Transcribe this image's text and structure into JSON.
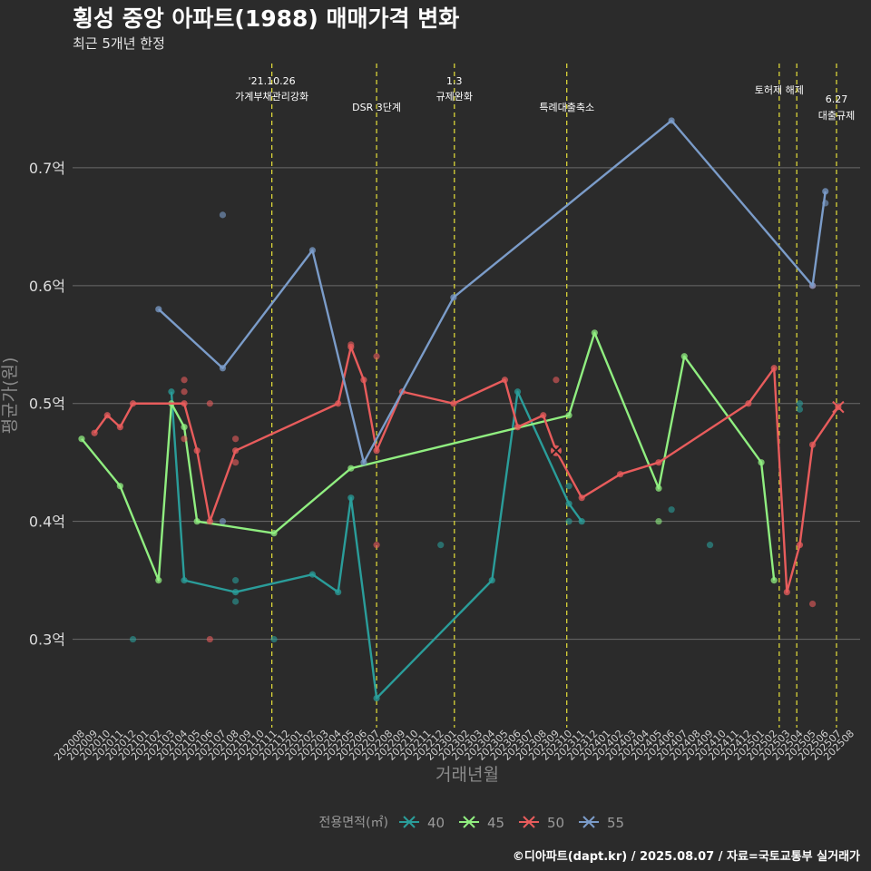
{
  "chart_data": {
    "type": "line",
    "title": "횡성 중앙 아파트(1988) 매매가격 변화",
    "subtitle": "최근 5개년 한정",
    "xlabel": "거래년월",
    "ylabel": "평균가(원)",
    "caption": "©디아파트(dapt.kr) / 2025.08.07 / 자료=국토교통부 실거래가",
    "legend_title": "전용면적(㎡)",
    "legend_position": "bottom",
    "grid": true,
    "y_unit": "억",
    "ylim": [
      0.225,
      0.79
    ],
    "yticks": [
      0.3,
      0.4,
      0.5,
      0.6,
      0.7
    ],
    "ytick_labels": [
      "0.3억",
      "0.4억",
      "0.5억",
      "0.6억",
      "0.7억"
    ],
    "x_start": "2020-08",
    "x_end": "2025-08",
    "xticks": [
      "202008",
      "202009",
      "202010",
      "202011",
      "202012",
      "202101",
      "202102",
      "202103",
      "202104",
      "202105",
      "202106",
      "202107",
      "202108",
      "202109",
      "202110",
      "202111",
      "202112",
      "202201",
      "202202",
      "202203",
      "202204",
      "202205",
      "202206",
      "202207",
      "202208",
      "202209",
      "202210",
      "202211",
      "202212",
      "202301",
      "202302",
      "202303",
      "202304",
      "202305",
      "202306",
      "202307",
      "202308",
      "202309",
      "202310",
      "202311",
      "202312",
      "202401",
      "202402",
      "202403",
      "202404",
      "202405",
      "202406",
      "202407",
      "202408",
      "202409",
      "202410",
      "202411",
      "202412",
      "202501",
      "202502",
      "202503",
      "202504",
      "202505",
      "202506",
      "202507",
      "202508"
    ],
    "events": [
      {
        "date": "2021-10-26",
        "label_lines": [
          "'21.10.26",
          "가계부채관리강화"
        ]
      },
      {
        "date": "2022-07-01",
        "label_lines": [
          "DSR 3단계"
        ]
      },
      {
        "date": "2023-01-03",
        "label_lines": [
          "1.3",
          "규제완화"
        ]
      },
      {
        "date": "2023-09-26",
        "label_lines": [
          "특례대출축소"
        ]
      },
      {
        "date": "2025-02-13",
        "label_lines": [
          "토허제 해제"
        ]
      },
      {
        "date": "2025-03-24",
        "label_lines": []
      },
      {
        "date": "2025-06-27",
        "label_lines": [
          "6.27",
          "대출규제"
        ]
      }
    ],
    "series": [
      {
        "name": "40",
        "color": "#2a9d9a",
        "line": [
          {
            "x": "2021-03",
            "y": 0.51
          },
          {
            "x": "2021-04",
            "y": 0.35
          },
          {
            "x": "2021-08",
            "y": 0.34
          },
          {
            "x": "2022-02",
            "y": 0.355
          },
          {
            "x": "2022-04",
            "y": 0.34
          },
          {
            "x": "2022-05",
            "y": 0.42
          },
          {
            "x": "2022-07",
            "y": 0.25
          },
          {
            "x": "2023-04",
            "y": 0.35
          },
          {
            "x": "2023-06",
            "y": 0.51
          },
          {
            "x": "2023-10",
            "y": 0.415
          },
          {
            "x": "2023-11",
            "y": 0.4
          }
        ],
        "points": [
          {
            "x": "2020-12",
            "y": 0.3
          },
          {
            "x": "2021-08",
            "y": 0.35
          },
          {
            "x": "2021-08",
            "y": 0.332
          },
          {
            "x": "2021-11",
            "y": 0.3
          },
          {
            "x": "2022-12",
            "y": 0.38
          },
          {
            "x": "2023-10",
            "y": 0.43
          },
          {
            "x": "2023-10",
            "y": 0.4
          },
          {
            "x": "2024-06",
            "y": 0.41
          },
          {
            "x": "2024-09",
            "y": 0.38
          },
          {
            "x": "2025-04",
            "y": 0.5
          },
          {
            "x": "2025-04",
            "y": 0.495
          }
        ]
      },
      {
        "name": "45",
        "color": "#90ee80",
        "line": [
          {
            "x": "2020-08",
            "y": 0.47
          },
          {
            "x": "2020-11",
            "y": 0.43
          },
          {
            "x": "2021-02",
            "y": 0.35
          },
          {
            "x": "2021-03",
            "y": 0.5
          },
          {
            "x": "2021-04",
            "y": 0.48
          },
          {
            "x": "2021-05",
            "y": 0.4
          },
          {
            "x": "2021-11",
            "y": 0.39
          },
          {
            "x": "2022-05",
            "y": 0.445
          },
          {
            "x": "2023-10",
            "y": 0.49
          },
          {
            "x": "2023-12",
            "y": 0.56
          },
          {
            "x": "2024-05",
            "y": 0.428
          },
          {
            "x": "2024-07",
            "y": 0.54
          },
          {
            "x": "2025-01",
            "y": 0.45
          },
          {
            "x": "2025-02",
            "y": 0.35
          }
        ],
        "points": [
          {
            "x": "2024-05",
            "y": 0.4
          }
        ]
      },
      {
        "name": "50",
        "color": "#e85c5c",
        "line": [
          {
            "x": "2020-09",
            "y": 0.475
          },
          {
            "x": "2020-10",
            "y": 0.49
          },
          {
            "x": "2020-11",
            "y": 0.48
          },
          {
            "x": "2020-12",
            "y": 0.5
          },
          {
            "x": "2021-04",
            "y": 0.5
          },
          {
            "x": "2021-05",
            "y": 0.46
          },
          {
            "x": "2021-06",
            "y": 0.4
          },
          {
            "x": "2021-08",
            "y": 0.46
          },
          {
            "x": "2022-04",
            "y": 0.5
          },
          {
            "x": "2022-05",
            "y": 0.548
          },
          {
            "x": "2022-06",
            "y": 0.52
          },
          {
            "x": "2022-07",
            "y": 0.46
          },
          {
            "x": "2022-09",
            "y": 0.51
          },
          {
            "x": "2023-01",
            "y": 0.5
          },
          {
            "x": "2023-05",
            "y": 0.52
          },
          {
            "x": "2023-06",
            "y": 0.48
          },
          {
            "x": "2023-08",
            "y": 0.49
          },
          {
            "x": "2023-09",
            "y": 0.46
          },
          {
            "x": "2023-11",
            "y": 0.42
          },
          {
            "x": "2024-02",
            "y": 0.44
          },
          {
            "x": "2024-05",
            "y": 0.45
          },
          {
            "x": "2024-12",
            "y": 0.5
          },
          {
            "x": "2025-02",
            "y": 0.53
          },
          {
            "x": "2025-03",
            "y": 0.34
          },
          {
            "x": "2025-04",
            "y": 0.38
          },
          {
            "x": "2025-05",
            "y": 0.465
          },
          {
            "x": "2025-07",
            "y": 0.497
          }
        ],
        "points": [
          {
            "x": "2021-04",
            "y": 0.52
          },
          {
            "x": "2021-04",
            "y": 0.51
          },
          {
            "x": "2021-04",
            "y": 0.47
          },
          {
            "x": "2021-06",
            "y": 0.5
          },
          {
            "x": "2021-06",
            "y": 0.3
          },
          {
            "x": "2021-08",
            "y": 0.47
          },
          {
            "x": "2021-08",
            "y": 0.45
          },
          {
            "x": "2022-05",
            "y": 0.55
          },
          {
            "x": "2022-07",
            "y": 0.54
          },
          {
            "x": "2022-07",
            "y": 0.38
          },
          {
            "x": "2023-09",
            "y": 0.52
          },
          {
            "x": "2025-05",
            "y": 0.6
          },
          {
            "x": "2025-05",
            "y": 0.33
          }
        ]
      },
      {
        "name": "55",
        "color": "#7b9cc9",
        "line": [
          {
            "x": "2021-02",
            "y": 0.58
          },
          {
            "x": "2021-07",
            "y": 0.53
          },
          {
            "x": "2022-02",
            "y": 0.63
          },
          {
            "x": "2022-06",
            "y": 0.45
          },
          {
            "x": "2023-01",
            "y": 0.59
          },
          {
            "x": "2024-06",
            "y": 0.74
          },
          {
            "x": "2025-05",
            "y": 0.6
          },
          {
            "x": "2025-06",
            "y": 0.68
          }
        ],
        "points": [
          {
            "x": "2021-07",
            "y": 0.66
          },
          {
            "x": "2021-07",
            "y": 0.4
          },
          {
            "x": "2025-06",
            "y": 0.67
          }
        ]
      }
    ]
  }
}
